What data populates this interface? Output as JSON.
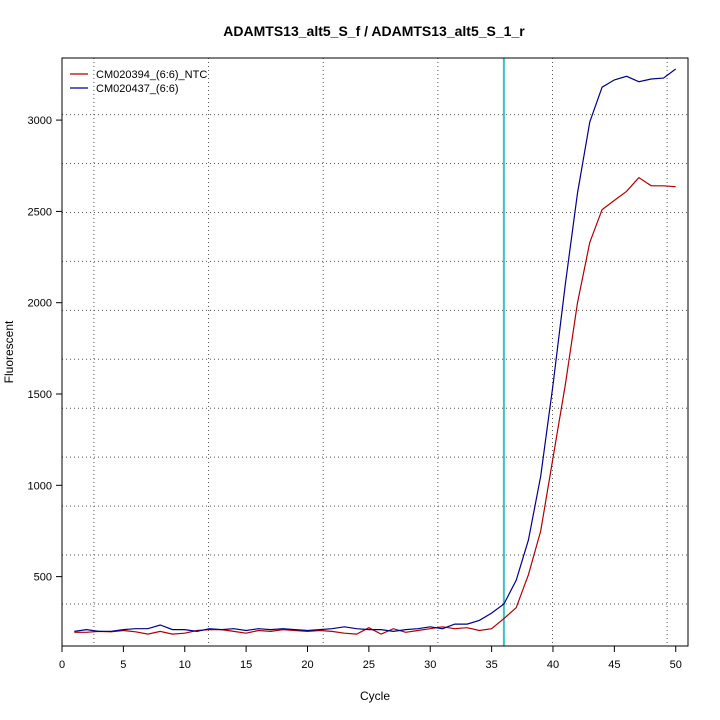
{
  "chart_data": {
    "type": "line",
    "title": "ADAMTS13_alt5_S_f / ADAMTS13_alt5_S_1_r",
    "xlabel": "Cycle",
    "ylabel": "Fluorescent",
    "xlim": [
      0,
      51
    ],
    "ylim": [
      120,
      3340
    ],
    "x_ticks": [
      0,
      5,
      10,
      15,
      20,
      25,
      30,
      35,
      40,
      45,
      50
    ],
    "y_ticks": [
      500,
      1000,
      1500,
      2000,
      2500,
      3000
    ],
    "grid": true,
    "legend_position": "top-left",
    "threshold_cycle": 36,
    "threshold_color": "#40c0c0",
    "x": [
      1,
      2,
      3,
      4,
      5,
      6,
      7,
      8,
      9,
      10,
      11,
      12,
      13,
      14,
      15,
      16,
      17,
      18,
      19,
      20,
      21,
      22,
      23,
      24,
      25,
      26,
      27,
      28,
      29,
      30,
      31,
      32,
      33,
      34,
      35,
      36,
      37,
      38,
      39,
      40,
      41,
      42,
      43,
      44,
      45,
      46,
      47,
      48,
      49,
      50
    ],
    "series": [
      {
        "name": "CM020394_(6:6)_NTC",
        "color": "#b00000",
        "values": [
          195,
          195,
          200,
          198,
          205,
          198,
          185,
          200,
          185,
          190,
          205,
          210,
          210,
          200,
          190,
          205,
          200,
          210,
          205,
          200,
          205,
          200,
          190,
          185,
          220,
          185,
          215,
          195,
          205,
          215,
          225,
          215,
          220,
          205,
          215,
          270,
          330,
          510,
          750,
          1150,
          1550,
          2000,
          2330,
          2510,
          2560,
          2610,
          2685,
          2640,
          2640,
          2635
        ]
      },
      {
        "name": "CM020437_(6:6)",
        "color": "#00008b",
        "values": [
          200,
          210,
          200,
          200,
          210,
          215,
          215,
          235,
          210,
          210,
          200,
          215,
          210,
          215,
          205,
          215,
          210,
          215,
          210,
          205,
          210,
          215,
          225,
          215,
          210,
          210,
          200,
          210,
          215,
          225,
          215,
          240,
          240,
          260,
          300,
          350,
          480,
          700,
          1050,
          1550,
          2100,
          2600,
          2990,
          3180,
          3220,
          3240,
          3210,
          3225,
          3230,
          3280
        ]
      }
    ]
  }
}
